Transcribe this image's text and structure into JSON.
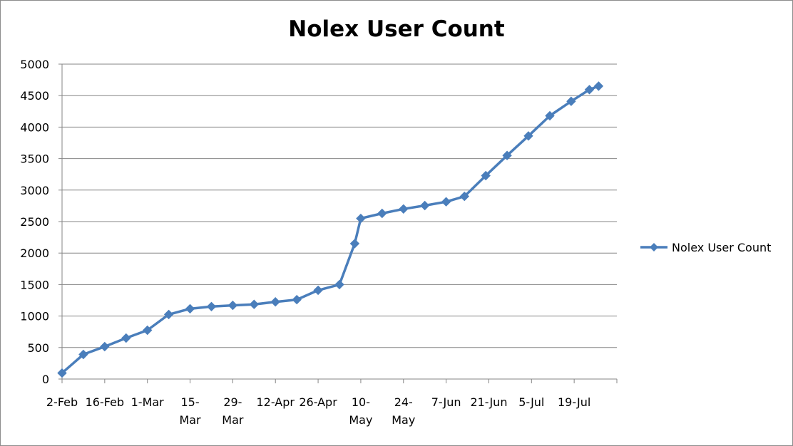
{
  "chart_data": {
    "type": "line",
    "title": "Nolex User Count",
    "xlabel": "",
    "ylabel": "",
    "ylim": [
      0,
      5000
    ],
    "y_ticks": [
      "0",
      "500",
      "1000",
      "1500",
      "2000",
      "2500",
      "3000",
      "3500",
      "4000",
      "4500",
      "5000"
    ],
    "x_tick_labels": [
      [
        "2-Feb"
      ],
      [
        "16-Feb"
      ],
      [
        "1-Mar"
      ],
      [
        "15-",
        "Mar"
      ],
      [
        "29-",
        "Mar"
      ],
      [
        "12-Apr"
      ],
      [
        "26-Apr"
      ],
      [
        "10-",
        "May"
      ],
      [
        "24-",
        "May"
      ],
      [
        "7-Jun"
      ],
      [
        "21-Jun"
      ],
      [
        "5-Jul"
      ],
      [
        "19-Jul"
      ]
    ],
    "grid": "horizontal",
    "legend_position": "right",
    "series": [
      {
        "name": "Nolex User Count",
        "color": "#4a7ebb",
        "points": [
          [
            "2-Feb",
            95
          ],
          [
            "9-Feb",
            390
          ],
          [
            "16-Feb",
            515
          ],
          [
            "23-Feb",
            650
          ],
          [
            "2-Mar",
            775
          ],
          [
            "9-Mar",
            1025
          ],
          [
            "16-Mar",
            1115
          ],
          [
            "23-Mar",
            1150
          ],
          [
            "30-Mar",
            1170
          ],
          [
            "6-Apr",
            1185
          ],
          [
            "13-Apr",
            1225
          ],
          [
            "20-Apr",
            1260
          ],
          [
            "27-Apr",
            1410
          ],
          [
            "4-May",
            1500
          ],
          [
            "9-May",
            2150
          ],
          [
            "11-May",
            2550
          ],
          [
            "18-May",
            2630
          ],
          [
            "25-May",
            2700
          ],
          [
            "1-Jun",
            2755
          ],
          [
            "8-Jun",
            2815
          ],
          [
            "14-Jun",
            2900
          ],
          [
            "21-Jun",
            3230
          ],
          [
            "28-Jun",
            3550
          ],
          [
            "5-Jul",
            3860
          ],
          [
            "12-Jul",
            4180
          ],
          [
            "19-Jul",
            4410
          ],
          [
            "25-Jul",
            4595
          ],
          [
            "28-Jul",
            4650
          ]
        ]
      }
    ]
  }
}
